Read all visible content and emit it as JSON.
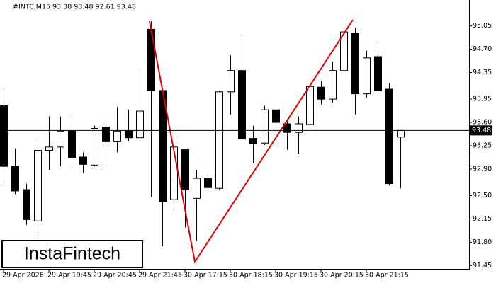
{
  "chart_data": {
    "type": "candlestick",
    "title": "#INTC,M15  93.38 93.48 92.61 93.48",
    "logo": "InstaFintech",
    "categories": [
      "29 Apr 2026",
      null,
      null,
      null,
      "29 Apr 19:45",
      null,
      null,
      null,
      "29 Apr 20:45",
      null,
      null,
      null,
      "29 Apr 21:45",
      null,
      null,
      null,
      "30 Apr 17:15",
      null,
      null,
      null,
      "30 Apr 18:15",
      null,
      null,
      null,
      "30 Apr 19:15",
      null,
      null,
      null,
      "30 Apr 20:15",
      null,
      null,
      null,
      "30 Apr 21:15",
      null,
      null,
      null
    ],
    "open": [
      93.85,
      92.94,
      92.59,
      92.12,
      93.18,
      93.23,
      93.47,
      93.08,
      92.96,
      93.53,
      93.31,
      93.47,
      93.37,
      95.0,
      94.08,
      92.44,
      93.19,
      92.46,
      92.76,
      92.61,
      94.06,
      94.38,
      93.36,
      93.29,
      93.79,
      93.58,
      93.45,
      93.57,
      94.13,
      93.95,
      94.38,
      94.94,
      94.03,
      94.59,
      94.1,
      93.38
    ],
    "high": [
      94.11,
      93.21,
      92.68,
      93.37,
      93.69,
      93.69,
      93.69,
      93.15,
      93.55,
      93.58,
      93.83,
      93.79,
      94.38,
      95.12,
      94.11,
      93.26,
      93.19,
      92.89,
      92.89,
      94.08,
      94.61,
      94.89,
      93.55,
      93.85,
      93.81,
      93.65,
      93.69,
      94.17,
      94.22,
      94.51,
      95.02,
      95.02,
      94.68,
      94.77,
      94.19,
      93.48
    ],
    "low": [
      92.68,
      92.52,
      92.06,
      91.9,
      92.89,
      92.94,
      92.91,
      92.84,
      92.94,
      92.94,
      93.15,
      93.31,
      93.35,
      92.48,
      91.74,
      92.25,
      92.02,
      91.82,
      92.57,
      92.59,
      93.72,
      93.35,
      92.99,
      93.26,
      93.4,
      93.19,
      93.13,
      93.55,
      93.87,
      93.9,
      94.35,
      93.72,
      93.97,
      94.06,
      92.65,
      92.61
    ],
    "close": [
      92.94,
      92.57,
      92.14,
      93.18,
      93.23,
      93.47,
      93.07,
      92.97,
      93.51,
      93.31,
      93.47,
      93.37,
      93.77,
      94.08,
      92.41,
      93.23,
      92.59,
      92.76,
      92.62,
      94.06,
      94.38,
      93.35,
      93.28,
      93.79,
      93.6,
      93.45,
      93.58,
      94.14,
      93.95,
      94.38,
      94.96,
      94.03,
      94.57,
      94.08,
      92.68,
      93.48
    ],
    "up_color": "#ffffff",
    "down_color": "#000000",
    "current_price": 93.48,
    "ylim": [
      91.4,
      95.44
    ],
    "yticks": [
      95.05,
      {
        "value": 94.7,
        "label": "94.70"
      },
      94.35,
      93.95,
      {
        "value": 93.6,
        "label": "93.60"
      },
      93.25,
      {
        "value": 92.9,
        "label": "92.90"
      },
      {
        "value": 92.5,
        "label": "92.50"
      },
      92.15,
      {
        "value": 91.8,
        "label": "91.80"
      },
      91.45
    ]
  }
}
